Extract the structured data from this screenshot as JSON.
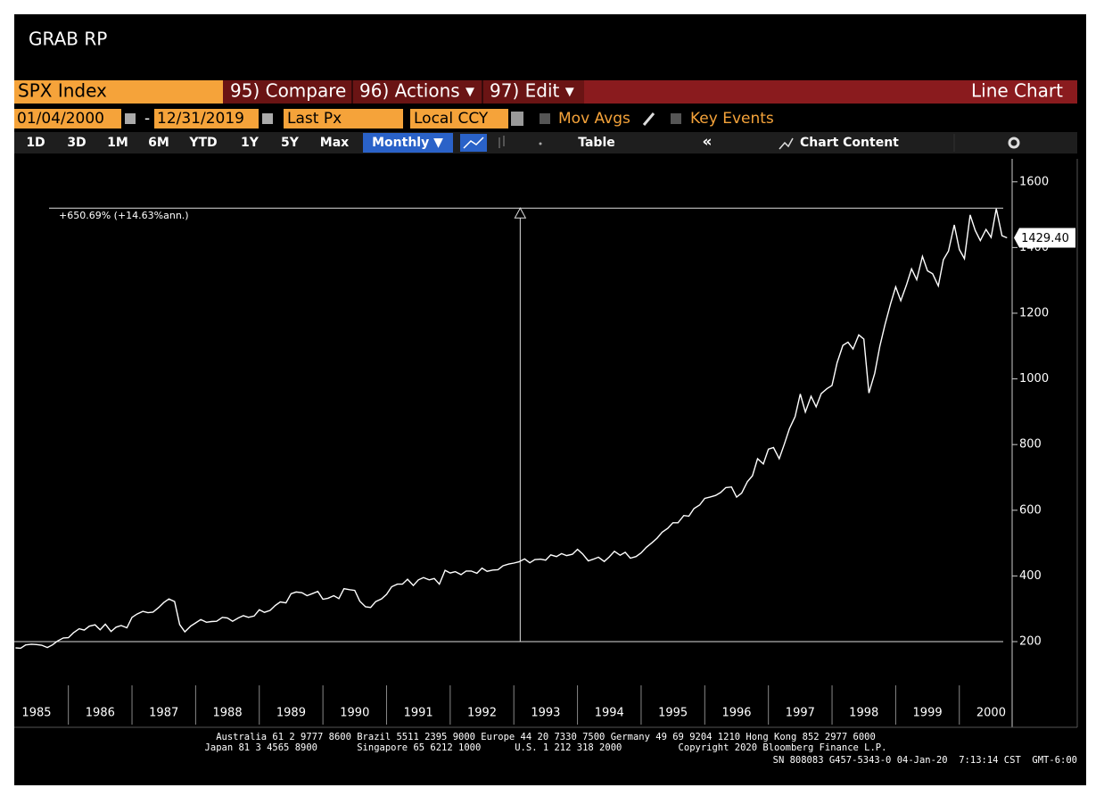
{
  "header": {
    "title": "GRAB RP"
  },
  "toolbar": {
    "security": "SPX Index",
    "compare": "95) Compare",
    "actions": "96) Actions ▾",
    "edit": "97) Edit ▾",
    "view": "Line Chart"
  },
  "settings": {
    "start": "01/04/2000",
    "separator": "-",
    "end": "12/31/2019",
    "field": "Last Px",
    "currency": "Local CCY",
    "mov_avgs": "Mov Avgs",
    "key_events": "Key Events"
  },
  "periods": [
    "1D",
    "3D",
    "1M",
    "6M",
    "YTD",
    "1Y",
    "5Y",
    "Max"
  ],
  "frequency": "Monthly ▼",
  "table": "Table",
  "collapse": "«",
  "chart_content": "Chart Content",
  "chart_data": {
    "type": "line",
    "color": "#ffffff",
    "x": [
      1985.17,
      1985.25,
      1985.33,
      1985.42,
      1985.5,
      1985.58,
      1985.67,
      1985.75,
      1985.83,
      1985.92,
      1986,
      1986.08,
      1986.17,
      1986.25,
      1986.33,
      1986.42,
      1986.5,
      1986.58,
      1986.67,
      1986.75,
      1986.83,
      1986.92,
      1987,
      1987.08,
      1987.17,
      1987.25,
      1987.33,
      1987.42,
      1987.5,
      1987.58,
      1987.67,
      1987.75,
      1987.83,
      1987.92,
      1988,
      1988.08,
      1988.17,
      1988.25,
      1988.33,
      1988.42,
      1988.5,
      1988.58,
      1988.67,
      1988.75,
      1988.83,
      1988.92,
      1989,
      1989.08,
      1989.17,
      1989.25,
      1989.33,
      1989.42,
      1989.5,
      1989.58,
      1989.67,
      1989.75,
      1989.83,
      1989.92,
      1990,
      1990.08,
      1990.17,
      1990.25,
      1990.33,
      1990.42,
      1990.5,
      1990.58,
      1990.67,
      1990.75,
      1990.83,
      1990.92,
      1991,
      1991.08,
      1991.17,
      1991.25,
      1991.33,
      1991.42,
      1991.5,
      1991.58,
      1991.67,
      1991.75,
      1991.83,
      1991.92,
      1992,
      1992.08,
      1992.17,
      1992.25,
      1992.33,
      1992.42,
      1992.5,
      1992.58,
      1992.67,
      1992.75,
      1992.83,
      1992.92,
      1993,
      1993.08,
      1993.17,
      1993.25,
      1993.33,
      1993.42,
      1993.5,
      1993.58,
      1993.67,
      1993.75,
      1993.83,
      1993.92,
      1994,
      1994.08,
      1994.17,
      1994.25,
      1994.33,
      1994.42,
      1994.5,
      1994.58,
      1994.67,
      1994.75,
      1994.83,
      1994.92,
      1995,
      1995.08,
      1995.17,
      1995.25,
      1995.33,
      1995.42,
      1995.5,
      1995.58,
      1995.67,
      1995.75,
      1995.83,
      1995.92,
      1996,
      1996.08,
      1996.17,
      1996.25,
      1996.33,
      1996.42,
      1996.5,
      1996.58,
      1996.67,
      1996.75,
      1996.83,
      1996.92,
      1997,
      1997.08,
      1997.17,
      1997.25,
      1997.33,
      1997.42,
      1997.5,
      1997.58,
      1997.67,
      1997.75,
      1997.83,
      1997.92,
      1998,
      1998.08,
      1998.17,
      1998.25,
      1998.33,
      1998.42,
      1998.5,
      1998.58,
      1998.67,
      1998.75,
      1998.83,
      1998.92,
      1999,
      1999.08,
      1999.17,
      1999.25,
      1999.33,
      1999.42,
      1999.5,
      1999.58,
      1999.67,
      1999.75,
      1999.83,
      1999.92,
      2000,
      2000.08,
      2000.17,
      2000.25,
      2000.33,
      2000.42,
      2000.5,
      2000.58,
      2000.67,
      2000.75
    ],
    "values": [
      181,
      180,
      190,
      192,
      191,
      189,
      182,
      190,
      202,
      211,
      212,
      227,
      239,
      235,
      247,
      251,
      236,
      253,
      231,
      244,
      249,
      242,
      274,
      284,
      292,
      288,
      290,
      304,
      319,
      330,
      322,
      252,
      230,
      247,
      257,
      267,
      259,
      261,
      262,
      274,
      272,
      262,
      272,
      279,
      274,
      278,
      297,
      289,
      295,
      310,
      321,
      318,
      346,
      351,
      349,
      340,
      346,
      353,
      329,
      332,
      340,
      331,
      361,
      358,
      356,
      323,
      306,
      304,
      322,
      330,
      344,
      367,
      375,
      375,
      390,
      371,
      388,
      395,
      388,
      392,
      375,
      417,
      409,
      413,
      404,
      415,
      415,
      408,
      424,
      414,
      418,
      419,
      431,
      436,
      439,
      443,
      452,
      440,
      450,
      451,
      448,
      464,
      459,
      468,
      462,
      466,
      481,
      467,
      446,
      451,
      457,
      444,
      458,
      475,
      463,
      472,
      454,
      459,
      470,
      487,
      501,
      515,
      533,
      545,
      562,
      562,
      584,
      582,
      605,
      616,
      636,
      640,
      645,
      654,
      669,
      671,
      640,
      652,
      687,
      705,
      757,
      741,
      786,
      791,
      757,
      801,
      848,
      885,
      954,
      899,
      947,
      915,
      955,
      970,
      980,
      1049,
      1102,
      1112,
      1091,
      1134,
      1121,
      957,
      1017,
      1099,
      1164,
      1229,
      1280,
      1238,
      1286,
      1335,
      1302,
      1373,
      1329,
      1320,
      1283,
      1363,
      1389,
      1469,
      1394,
      1366,
      1499,
      1452,
      1421,
      1455,
      1431,
      1518,
      1436,
      1429.4
    ],
    "xlim": [
      1985.15,
      2000.83
    ],
    "xticks": [
      1985,
      1986,
      1987,
      1988,
      1989,
      1990,
      1991,
      1992,
      1993,
      1994,
      1995,
      1996,
      1997,
      1998,
      1999,
      2000
    ],
    "ylim": [
      75,
      1670
    ],
    "yticks": [
      200,
      400,
      600,
      800,
      1000,
      1200,
      1400,
      1600
    ],
    "callout": {
      "value": 1429.4,
      "label": "1429.40"
    },
    "measure": {
      "label": "+650.69% (+14.63%ann.)",
      "low": 200,
      "high": 1520,
      "x": 1993.1
    }
  },
  "footer": [
    "Australia 61 2 9777 8600 Brazil 5511 2395 9000 Europe 44 20 7330 7500 Germany 49 69 9204 1210 Hong Kong 852 2977 6000",
    "Japan 81 3 4565 8900       Singapore 65 6212 1000      U.S. 1 212 318 2000          Copyright 2020 Bloomberg Finance L.P.",
    "SN 808083 G457-5343-0 04-Jan-20  7:13:14 CST  GMT-6:00"
  ]
}
